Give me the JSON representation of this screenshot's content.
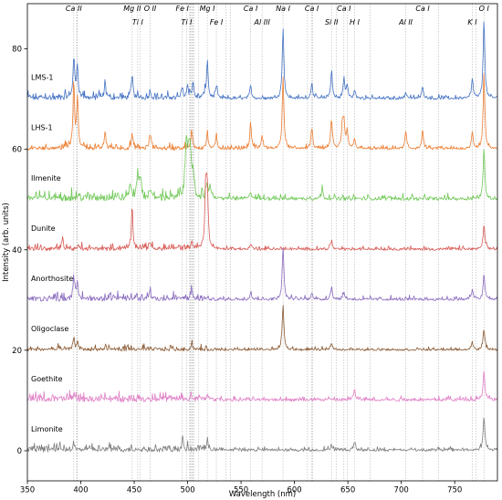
{
  "chart_data": {
    "type": "line",
    "title": "",
    "xlabel": "Wavelength (nm)",
    "ylabel": "Intensity (arb. units)",
    "xlim": [
      350,
      790
    ],
    "ylim": [
      -6,
      89
    ],
    "x_ticks": [
      350,
      400,
      450,
      500,
      550,
      600,
      650,
      700,
      750
    ],
    "y_ticks": [
      0,
      20,
      40,
      60,
      80
    ],
    "grid": false,
    "legend": "none",
    "element_lines_top": [
      {
        "label": "Ca II",
        "x": 393.4
      },
      {
        "label": "Mg II",
        "x": 448.1
      },
      {
        "label": "O II",
        "x": 464.9
      },
      {
        "label": "Fe I",
        "x": 495.0
      },
      {
        "label": "Mg I",
        "x": 518.4
      },
      {
        "label": "Ca I",
        "x": 559.0
      },
      {
        "label": "Na I",
        "x": 589.3
      },
      {
        "label": "Ca I",
        "x": 616.2
      },
      {
        "label": "Ca I",
        "x": 646.3
      },
      {
        "label": "Ca I",
        "x": 720.0
      },
      {
        "label": "O I",
        "x": 777.4
      }
    ],
    "element_lines_bottom": [
      {
        "label": "Ti I",
        "x": 453.3
      },
      {
        "label": "Ti I",
        "x": 499.1
      },
      {
        "label": "Fe I",
        "x": 526.9
      },
      {
        "label": "Al III",
        "x": 569.7
      },
      {
        "label": "Si II",
        "x": 634.7
      },
      {
        "label": "H I",
        "x": 656.3
      },
      {
        "label": "Al II",
        "x": 704.2
      },
      {
        "label": "K I",
        "x": 766.5
      }
    ],
    "extra_guides": [
      396.8,
      396.2,
      455.4,
      501.9,
      502.5,
      503.0,
      504.0,
      505.1,
      506.2,
      510.0,
      536.0,
      540.0,
      612.2,
      617.1,
      639.0,
      649.4,
      670.8,
      735.0,
      769.9
    ],
    "series": [
      {
        "name": "LMS-1",
        "offset": 70,
        "color": "#4472c4",
        "noise": 0.7,
        "peaks": [
          [
            393.4,
            8
          ],
          [
            396.8,
            6.5
          ],
          [
            422.7,
            2.5
          ],
          [
            448.1,
            4.5
          ],
          [
            464.9,
            1.5
          ],
          [
            495.0,
            2
          ],
          [
            500.0,
            2.5
          ],
          [
            505.0,
            3
          ],
          [
            518.4,
            7.5
          ],
          [
            526.9,
            2.5
          ],
          [
            559.0,
            2.5
          ],
          [
            589.3,
            14
          ],
          [
            616.2,
            3
          ],
          [
            634.7,
            5.5
          ],
          [
            646.3,
            4
          ],
          [
            649.4,
            2.5
          ],
          [
            656.3,
            1.5
          ],
          [
            704.2,
            1.2
          ],
          [
            720.0,
            2.5
          ],
          [
            766.5,
            4
          ],
          [
            777.4,
            16
          ]
        ]
      },
      {
        "name": "LHS-1",
        "offset": 60,
        "color": "#ed7d31",
        "noise": 0.6,
        "peaks": [
          [
            393.4,
            12
          ],
          [
            396.8,
            10
          ],
          [
            422.7,
            3
          ],
          [
            448.1,
            2.5
          ],
          [
            464.9,
            3
          ],
          [
            504.0,
            3.5
          ],
          [
            518.4,
            3
          ],
          [
            526.9,
            2.5
          ],
          [
            559.0,
            5
          ],
          [
            569.7,
            2.5
          ],
          [
            589.3,
            14.5
          ],
          [
            616.2,
            4
          ],
          [
            634.7,
            6
          ],
          [
            644.9,
            4.5
          ],
          [
            646.3,
            5
          ],
          [
            649.4,
            3.5
          ],
          [
            656.3,
            2
          ],
          [
            704.2,
            3.5
          ],
          [
            720.0,
            3.5
          ],
          [
            766.5,
            3.5
          ],
          [
            777.4,
            15
          ]
        ]
      },
      {
        "name": "Ilmenite",
        "offset": 50,
        "color": "#70c857",
        "noise": 0.9,
        "peaks": [
          [
            446.0,
            3
          ],
          [
            453.3,
            5
          ],
          [
            455.4,
            4
          ],
          [
            464.9,
            2
          ],
          [
            498.2,
            5
          ],
          [
            499.1,
            8
          ],
          [
            500.7,
            6
          ],
          [
            501.9,
            7
          ],
          [
            503.0,
            5
          ],
          [
            505.1,
            4
          ],
          [
            518.4,
            3
          ],
          [
            521.0,
            2.5
          ],
          [
            559.0,
            1.5
          ],
          [
            626.0,
            2
          ],
          [
            777.4,
            10
          ]
        ]
      },
      {
        "name": "Dunite",
        "offset": 40,
        "color": "#d85a55",
        "noise": 0.6,
        "peaks": [
          [
            383.0,
            2
          ],
          [
            448.1,
            7.5
          ],
          [
            464.9,
            1.5
          ],
          [
            504.0,
            1.5
          ],
          [
            516.7,
            6
          ],
          [
            517.3,
            7
          ],
          [
            518.4,
            10.5
          ],
          [
            559.0,
            1.2
          ],
          [
            634.7,
            1.5
          ],
          [
            777.4,
            5
          ]
        ]
      },
      {
        "name": "Anorthosite",
        "offset": 30,
        "color": "#8a6bbf",
        "noise": 0.7,
        "peaks": [
          [
            393.4,
            4
          ],
          [
            396.8,
            3
          ],
          [
            464.9,
            1.5
          ],
          [
            504.0,
            1.5
          ],
          [
            559.0,
            1.5
          ],
          [
            589.3,
            10.5
          ],
          [
            616.2,
            1.5
          ],
          [
            634.7,
            2.5
          ],
          [
            646.3,
            1.5
          ],
          [
            766.5,
            2
          ],
          [
            777.4,
            5
          ]
        ]
      },
      {
        "name": "Oligoclase",
        "offset": 20,
        "color": "#8b5a33",
        "noise": 0.5,
        "peaks": [
          [
            393.4,
            2
          ],
          [
            396.8,
            1.5
          ],
          [
            504.0,
            1
          ],
          [
            589.3,
            9
          ],
          [
            634.7,
            1.5
          ],
          [
            766.5,
            1.5
          ],
          [
            777.4,
            4
          ]
        ]
      },
      {
        "name": "Goethite",
        "offset": 10,
        "color": "#e07fc6",
        "noise": 0.8,
        "peaks": [
          [
            393.4,
            1
          ],
          [
            518.4,
            1
          ],
          [
            656.3,
            2
          ],
          [
            777.4,
            6
          ]
        ]
      },
      {
        "name": "Limonite",
        "offset": 0,
        "color": "#7f7f7f",
        "noise": 0.7,
        "peaks": [
          [
            393.4,
            1
          ],
          [
            495.0,
            1.5
          ],
          [
            518.4,
            1.5
          ],
          [
            634.7,
            1.2
          ],
          [
            656.3,
            1.5
          ],
          [
            777.4,
            7
          ]
        ]
      }
    ]
  }
}
